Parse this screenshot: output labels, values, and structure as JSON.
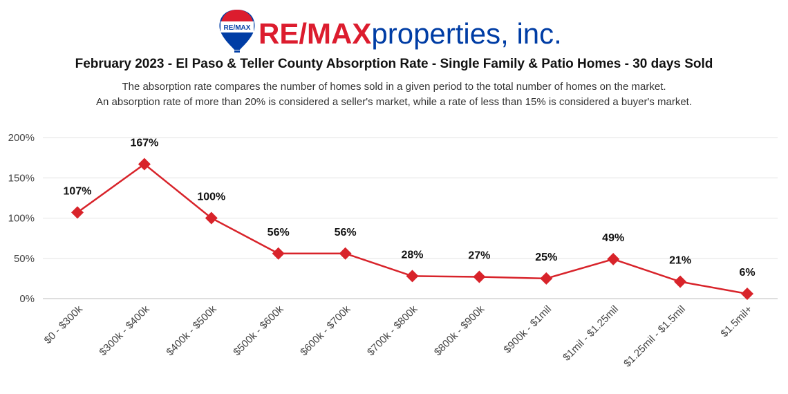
{
  "logo": {
    "balloon_text": "RE/MAX",
    "brand_red": "RE/MAX",
    "brand_blue": "properties, inc.",
    "colors": {
      "red": "#dc1c2e",
      "blue": "#003da5"
    }
  },
  "chart_data": {
    "type": "line",
    "title": "February 2023 - El Paso & Teller County Absorption Rate - Single Family & Patio Homes - 30 days Sold",
    "subtitle_lines": [
      "The absorption rate compares the number of homes sold in a given period to the total number of homes on the market.",
      "An absorption rate of more than 20% is considered a seller's market, while a rate of less than 15% is considered a buyer's market."
    ],
    "categories": [
      "$0 - $300k",
      "$300k - $400k",
      "$400k - $500k",
      "$500k - $600k",
      "$600k - $700k",
      "$700k - $800k",
      "$800k - $900k",
      "$900k - $1mil",
      "$1mil - $1.25mil",
      "$1.25mil - $1.5mil",
      "$1.5mil+"
    ],
    "series": [
      {
        "values": [
          107,
          167,
          100,
          56,
          56,
          28,
          27,
          25,
          49,
          21,
          6
        ],
        "labels": [
          "107%",
          "167%",
          "100%",
          "56%",
          "56%",
          "28%",
          "27%",
          "25%",
          "49%",
          "21%",
          "6%"
        ],
        "color": "#d8232a"
      }
    ],
    "y_ticks": [
      0,
      50,
      100,
      150,
      200
    ],
    "y_tick_labels": [
      "0%",
      "50%",
      "100%",
      "150%",
      "200%"
    ],
    "ylim": [
      0,
      200
    ],
    "grid": true,
    "marker": "diamond"
  }
}
